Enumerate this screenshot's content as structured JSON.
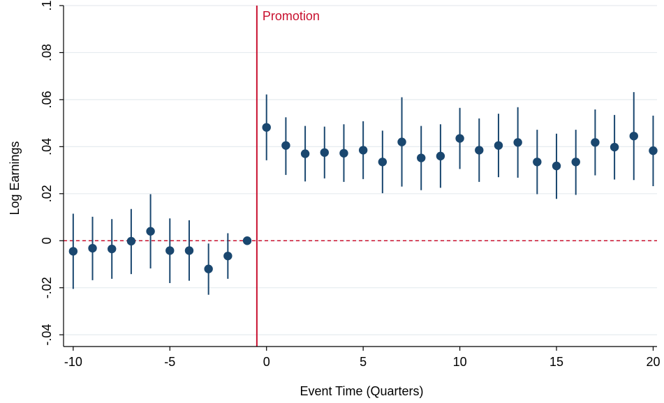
{
  "chart_data": {
    "type": "scatter",
    "subtype": "event-study coefficients with confidence intervals",
    "xlabel": "Event Time (Quarters)",
    "ylabel": "Log Earnings",
    "xlim": [
      -10.5,
      20.2
    ],
    "ylim": [
      -0.045,
      0.1
    ],
    "x_ticks": [
      -10,
      -5,
      0,
      5,
      10,
      15,
      20
    ],
    "x_tick_labels": [
      "-10",
      "-5",
      "0",
      "5",
      "10",
      "15",
      "20"
    ],
    "y_ticks": [
      -0.04,
      -0.02,
      0,
      0.02,
      0.04,
      0.06,
      0.08,
      0.1
    ],
    "y_tick_labels": [
      "-.04",
      "-.02",
      "0",
      ".02",
      ".04",
      ".06",
      ".08",
      ".1"
    ],
    "grid": "horizontal",
    "reference_lines": {
      "vertical": {
        "x": -0.5,
        "label": "Promotion",
        "color": "#c8102e",
        "style": "solid"
      },
      "horizontal": {
        "y": 0,
        "color": "#c8102e",
        "style": "dashed"
      }
    },
    "marker_color": "#1a476f",
    "points": [
      {
        "x": -10,
        "y": -0.0045,
        "lo": -0.0205,
        "hi": 0.0115
      },
      {
        "x": -9,
        "y": -0.0032,
        "lo": -0.0168,
        "hi": 0.0102
      },
      {
        "x": -8,
        "y": -0.0035,
        "lo": -0.0162,
        "hi": 0.0092
      },
      {
        "x": -7,
        "y": -0.0002,
        "lo": -0.0142,
        "hi": 0.0135
      },
      {
        "x": -6,
        "y": 0.004,
        "lo": -0.0118,
        "hi": 0.0198
      },
      {
        "x": -5,
        "y": -0.0042,
        "lo": -0.018,
        "hi": 0.0095
      },
      {
        "x": -4,
        "y": -0.0042,
        "lo": -0.017,
        "hi": 0.0087
      },
      {
        "x": -3,
        "y": -0.012,
        "lo": -0.023,
        "hi": -0.0012
      },
      {
        "x": -2,
        "y": -0.0065,
        "lo": -0.0162,
        "hi": 0.0032
      },
      {
        "x": -1,
        "y": 0.0,
        "lo": 0.0,
        "hi": 0.0
      },
      {
        "x": 0,
        "y": 0.0482,
        "lo": 0.0342,
        "hi": 0.0622
      },
      {
        "x": 1,
        "y": 0.0405,
        "lo": 0.028,
        "hi": 0.0525
      },
      {
        "x": 2,
        "y": 0.037,
        "lo": 0.0252,
        "hi": 0.0488
      },
      {
        "x": 3,
        "y": 0.0375,
        "lo": 0.0265,
        "hi": 0.0485
      },
      {
        "x": 4,
        "y": 0.0372,
        "lo": 0.025,
        "hi": 0.0495
      },
      {
        "x": 5,
        "y": 0.0385,
        "lo": 0.0262,
        "hi": 0.0508
      },
      {
        "x": 6,
        "y": 0.0335,
        "lo": 0.0202,
        "hi": 0.0468
      },
      {
        "x": 7,
        "y": 0.042,
        "lo": 0.023,
        "hi": 0.061
      },
      {
        "x": 8,
        "y": 0.0352,
        "lo": 0.0215,
        "hi": 0.0488
      },
      {
        "x": 9,
        "y": 0.036,
        "lo": 0.0225,
        "hi": 0.0495
      },
      {
        "x": 10,
        "y": 0.0435,
        "lo": 0.0305,
        "hi": 0.0565
      },
      {
        "x": 11,
        "y": 0.0385,
        "lo": 0.025,
        "hi": 0.052
      },
      {
        "x": 12,
        "y": 0.0405,
        "lo": 0.027,
        "hi": 0.054
      },
      {
        "x": 13,
        "y": 0.0418,
        "lo": 0.0268,
        "hi": 0.0568
      },
      {
        "x": 14,
        "y": 0.0335,
        "lo": 0.0198,
        "hi": 0.0472
      },
      {
        "x": 15,
        "y": 0.0318,
        "lo": 0.0178,
        "hi": 0.0455
      },
      {
        "x": 16,
        "y": 0.0335,
        "lo": 0.0195,
        "hi": 0.0472
      },
      {
        "x": 17,
        "y": 0.0418,
        "lo": 0.0278,
        "hi": 0.0558
      },
      {
        "x": 18,
        "y": 0.0398,
        "lo": 0.026,
        "hi": 0.0535
      },
      {
        "x": 19,
        "y": 0.0445,
        "lo": 0.0258,
        "hi": 0.0632
      },
      {
        "x": 20,
        "y": 0.0383,
        "lo": 0.0232,
        "hi": 0.0532
      }
    ]
  }
}
